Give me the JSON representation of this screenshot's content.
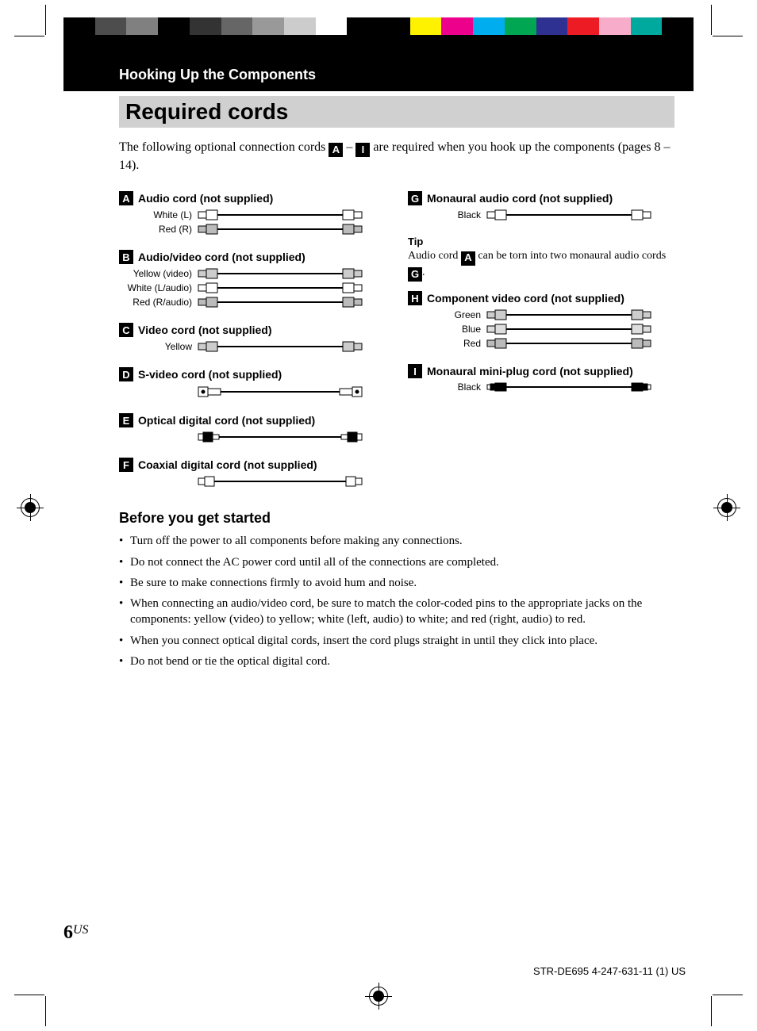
{
  "colorbar": [
    "#000",
    "#4d4d4d",
    "#808080",
    "#000",
    "#333",
    "#666",
    "#999",
    "#ccc",
    "#fff",
    "#000",
    "#000",
    "#fff200",
    "#ec008c",
    "#00aeef",
    "#00a651",
    "#2e3192",
    "#ed1c24",
    "#f7adc9",
    "#00a99d",
    "#000"
  ],
  "header": {
    "section": "Hooking Up the Components",
    "title": "Required cords"
  },
  "intro": {
    "pre": "The following optional connection cords ",
    "mid": " – ",
    "post": " are required when you hook up the components (pages 8 – 14).",
    "from": "A",
    "to": "I"
  },
  "cords": {
    "A": {
      "title": "Audio cord (not supplied)",
      "lines": [
        "White (L)",
        "Red (R)"
      ]
    },
    "B": {
      "title": "Audio/video cord (not supplied)",
      "lines": [
        "Yellow (video)",
        "White (L/audio)",
        "Red (R/audio)"
      ]
    },
    "C": {
      "title": "Video cord (not supplied)",
      "lines": [
        "Yellow"
      ]
    },
    "D": {
      "title": "S-video cord (not supplied)"
    },
    "E": {
      "title": "Optical digital cord (not supplied)"
    },
    "F": {
      "title": "Coaxial digital cord (not supplied)"
    },
    "G": {
      "title": "Monaural audio cord (not supplied)",
      "lines": [
        "Black"
      ]
    },
    "H": {
      "title": "Component video cord (not supplied)",
      "lines": [
        "Green",
        "Blue",
        "Red"
      ]
    },
    "I": {
      "title": "Monaural mini-plug cord (not supplied)",
      "lines": [
        "Black"
      ]
    }
  },
  "tip": {
    "head": "Tip",
    "pre": "Audio cord ",
    "mid": " can be torn into two monaural audio cords ",
    "post": ".",
    "a": "A",
    "g": "G"
  },
  "before": {
    "head": "Before you get started",
    "items": [
      "Turn off the power to all components before making any connections.",
      "Do not connect the AC power cord until all of the connections are completed.",
      "Be sure to make connections firmly to avoid hum and noise.",
      "When connecting an audio/video cord, be sure to match the color-coded pins to the appropriate jacks on the components: yellow (video) to yellow; white (left, audio) to white; and red (right, audio) to red.",
      "When you connect optical digital cords, insert the cord plugs straight in until they click into place.",
      "Do not bend or tie the optical digital cord."
    ]
  },
  "page": {
    "num": "6",
    "region": "US"
  },
  "footer": "STR-DE695 4-247-631-11 (1) US"
}
